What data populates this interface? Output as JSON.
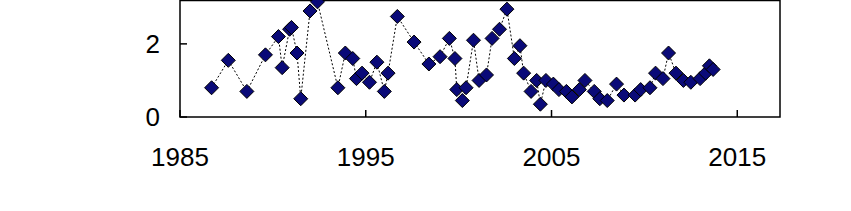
{
  "chart_data": {
    "type": "scatter",
    "marker": "diamond",
    "line_style": "dotted",
    "color": "#0a0a78",
    "x": [
      1986.7,
      1987.6,
      1988.6,
      1989.6,
      1990.3,
      1990.5,
      1990.9,
      1991.0,
      1991.3,
      1991.5,
      1992.0,
      1992.4,
      1993.5,
      1993.9,
      1994.3,
      1994.5,
      1994.8,
      1995.2,
      1995.6,
      1996.0,
      1996.2,
      1996.7,
      1997.6,
      1998.4,
      1999.0,
      1999.5,
      1999.8,
      1999.9,
      2000.2,
      2000.4,
      2000.8,
      2001.1,
      2001.5,
      2001.8,
      2002.2,
      2002.6,
      2003.0,
      2003.3,
      2003.5,
      2003.9,
      2004.2,
      2004.4,
      2004.7,
      2005.1,
      2005.4,
      2005.8,
      2006.1,
      2006.5,
      2006.8,
      2007.3,
      2007.6,
      2008.0,
      2008.5,
      2008.9,
      2009.5,
      2009.8,
      2010.3,
      2010.6,
      2011.0,
      2011.3,
      2011.7,
      2012.1,
      2012.5,
      2013.0,
      2013.3,
      2013.5,
      2013.7
    ],
    "values": [
      0.8,
      1.55,
      0.7,
      1.7,
      2.2,
      1.35,
      2.4,
      2.45,
      1.75,
      0.5,
      2.9,
      3.15,
      0.8,
      1.75,
      1.6,
      1.05,
      1.2,
      0.95,
      1.5,
      0.7,
      1.2,
      2.75,
      2.05,
      1.45,
      1.65,
      2.15,
      1.6,
      0.75,
      0.45,
      0.8,
      2.1,
      1.0,
      1.15,
      2.15,
      2.4,
      2.95,
      1.6,
      1.95,
      1.2,
      0.7,
      1.0,
      0.35,
      1.0,
      0.9,
      0.75,
      0.7,
      0.55,
      0.75,
      1.0,
      0.7,
      0.5,
      0.45,
      0.9,
      0.6,
      0.6,
      0.75,
      0.8,
      1.2,
      1.05,
      1.75,
      1.2,
      1.0,
      0.95,
      1.05,
      1.2,
      1.4,
      1.3
    ],
    "xlim": [
      1985,
      2017.3
    ],
    "xticks": [
      1985,
      1995,
      2005,
      2015
    ],
    "ylim": [
      0,
      3.2
    ],
    "yticks": [
      0,
      2
    ],
    "grid": false
  }
}
